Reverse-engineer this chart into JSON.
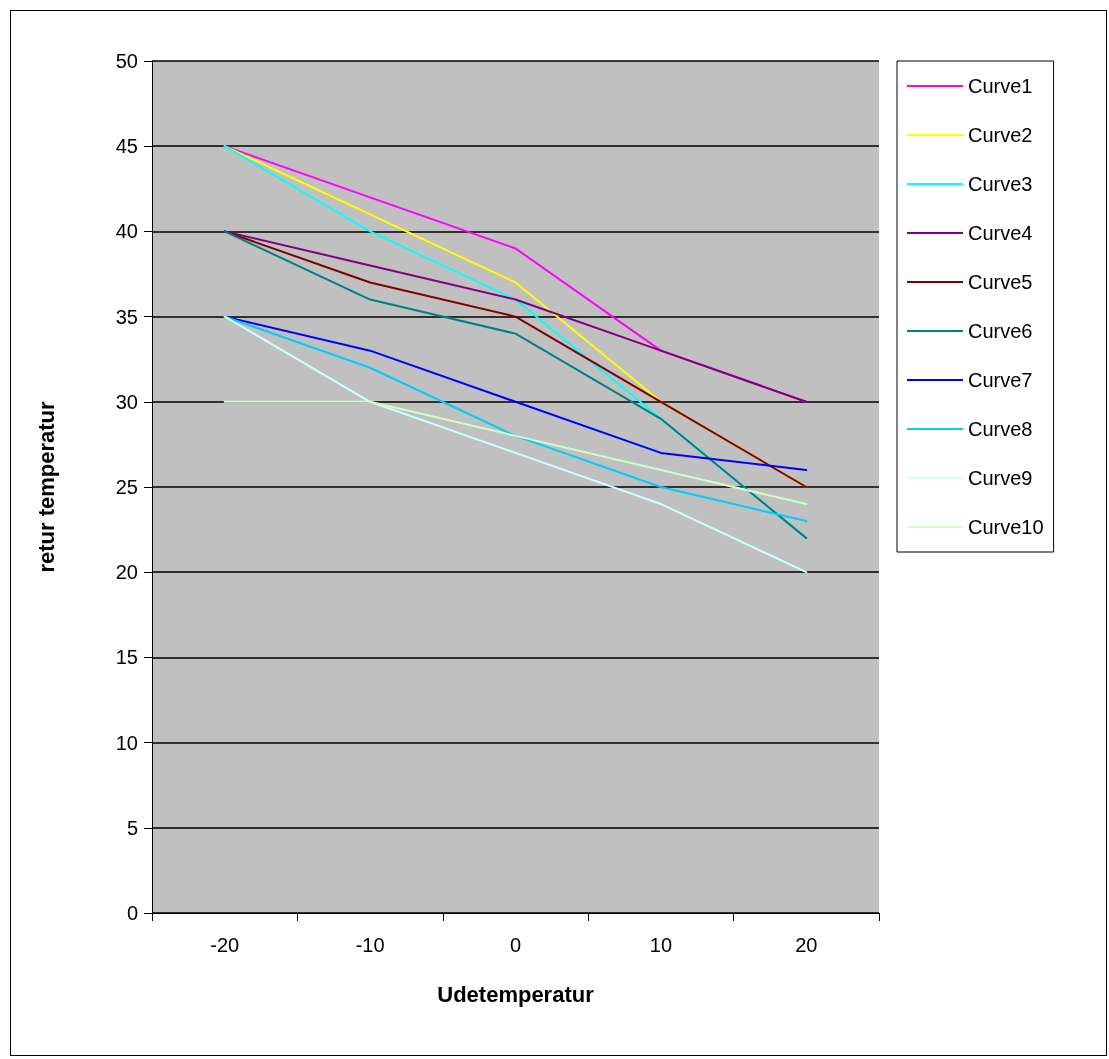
{
  "chart_data": {
    "type": "line",
    "xlabel": "Udetemperatur",
    "ylabel": "retur temperatur",
    "categories": [
      "-20",
      "-10",
      "0",
      "10",
      "20"
    ],
    "ylim": [
      0,
      50
    ],
    "yticks": [
      0,
      5,
      10,
      15,
      20,
      25,
      30,
      35,
      40,
      45,
      50
    ],
    "grid": "y",
    "legend": "right",
    "marker": "none",
    "series": [
      {
        "name": "Curve1",
        "color": "#ff00ff",
        "values": [
          45,
          42,
          39,
          33,
          30
        ]
      },
      {
        "name": "Curve2",
        "color": "#ffff00",
        "values": [
          45,
          41,
          37,
          30,
          25
        ]
      },
      {
        "name": "Curve3",
        "color": "#00ffff",
        "values": [
          45,
          40,
          36,
          29,
          22
        ]
      },
      {
        "name": "Curve4",
        "color": "#800080",
        "values": [
          40,
          38,
          36,
          33,
          30
        ]
      },
      {
        "name": "Curve5",
        "color": "#800000",
        "values": [
          40,
          37,
          35,
          30,
          25
        ]
      },
      {
        "name": "Curve6",
        "color": "#008080",
        "values": [
          40,
          36,
          34,
          29,
          22
        ]
      },
      {
        "name": "Curve7",
        "color": "#0000ff",
        "values": [
          35,
          33,
          30,
          27,
          26
        ]
      },
      {
        "name": "Curve8",
        "color": "#00ccff",
        "values": [
          35,
          32,
          28,
          25,
          23
        ]
      },
      {
        "name": "Curve9",
        "color": "#ccffff",
        "values": [
          35,
          30,
          27,
          24,
          20
        ]
      },
      {
        "name": "Curve10",
        "color": "#ccffcc",
        "values": [
          30,
          30,
          28,
          26,
          24
        ]
      }
    ]
  }
}
